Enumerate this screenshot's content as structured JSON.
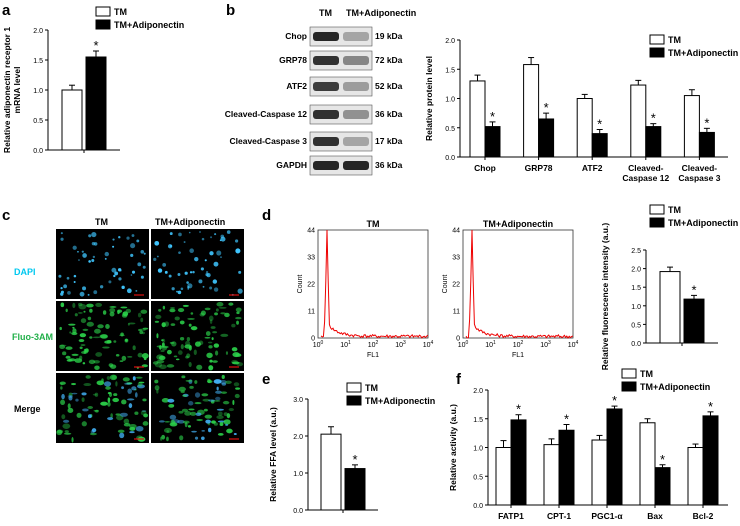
{
  "panels": {
    "a": {
      "label": "a"
    },
    "b": {
      "label": "b",
      "blot_header_left": "TM",
      "blot_header_right": "TM+Adiponectin"
    },
    "c": {
      "label": "c",
      "col_left": "TM",
      "col_right": "TM+Adiponectin",
      "rows": [
        "DAPI",
        "Fluo-3AM",
        "Merge"
      ],
      "colors": {
        "dapi": "#00c8f0",
        "fluo": "#22b04a",
        "merge": "#000000"
      }
    },
    "d": {
      "label": "d",
      "hist_left_title": "TM",
      "hist_right_title": "TM+Adiponectin",
      "hist_y_label": "Count",
      "hist_x_label": "FL1",
      "hist_y_ticks": [
        "0",
        "11",
        "22",
        "33",
        "44"
      ],
      "hist_x_exp": [
        "0",
        "1",
        "2",
        "3",
        "4"
      ],
      "hist_x_base": "10"
    },
    "e": {
      "label": "e"
    },
    "f": {
      "label": "f"
    }
  },
  "blot": {
    "rows": [
      {
        "name": "Chop",
        "kda": "19 kDa"
      },
      {
        "name": "GRP78",
        "kda": "72 kDa"
      },
      {
        "name": "ATF2",
        "kda": "52 kDa"
      },
      {
        "name": "Cleaved-Caspase 12",
        "kda": "36 kDa"
      },
      {
        "name": "Cleaved-Caspase 3",
        "kda": "17 kDa"
      },
      {
        "name": "GAPDH",
        "kda": "36 kDa"
      }
    ]
  },
  "legend": {
    "tm": "TM",
    "tm_adipo": "TM+Adiponectin"
  },
  "significance_marker": "*",
  "chart_data": [
    {
      "id": "a",
      "type": "bar",
      "ylabel": "Relative adiponectin receptor 1 mRNA level",
      "ylim": [
        0,
        2.0
      ],
      "yticks": [
        "0.0",
        "0.5",
        "1.0",
        "1.5",
        "2.0"
      ],
      "categories": [
        ""
      ],
      "series": [
        {
          "name": "TM",
          "values": [
            1.0
          ],
          "errors": [
            0.08
          ]
        },
        {
          "name": "TM+Adiponectin",
          "values": [
            1.55
          ],
          "errors": [
            0.1
          ]
        }
      ],
      "significant": [
        true
      ]
    },
    {
      "id": "b",
      "type": "bar",
      "ylabel": "Relative protein level",
      "ylim": [
        0,
        2.0
      ],
      "yticks": [
        "0.0",
        "0.5",
        "1.0",
        "1.5",
        "2.0"
      ],
      "categories": [
        "Chop",
        "GRP78",
        "ATF2",
        "Cleaved-Caspase 12",
        "Cleaved-Caspase 3"
      ],
      "category_lines": [
        [
          "Chop"
        ],
        [
          "GRP78"
        ],
        [
          "ATF2"
        ],
        [
          "Cleaved-",
          "Caspase 12"
        ],
        [
          "Cleaved-",
          "Caspase 3"
        ]
      ],
      "series": [
        {
          "name": "TM",
          "values": [
            1.3,
            1.58,
            1.0,
            1.23,
            1.05
          ],
          "errors": [
            0.1,
            0.12,
            0.07,
            0.08,
            0.1
          ]
        },
        {
          "name": "TM+Adiponectin",
          "values": [
            0.52,
            0.65,
            0.4,
            0.52,
            0.42
          ],
          "errors": [
            0.08,
            0.1,
            0.07,
            0.05,
            0.07
          ]
        }
      ],
      "significant": [
        true,
        true,
        true,
        true,
        true
      ]
    },
    {
      "id": "d",
      "type": "bar",
      "ylabel": "Relative fluorescence intensity (a.u.)",
      "ylim": [
        0,
        2.5
      ],
      "yticks": [
        "0.0",
        "0.5",
        "1.0",
        "1.5",
        "2.0",
        "2.5"
      ],
      "categories": [
        ""
      ],
      "series": [
        {
          "name": "TM",
          "values": [
            1.92
          ],
          "errors": [
            0.12
          ]
        },
        {
          "name": "TM+Adiponectin",
          "values": [
            1.18
          ],
          "errors": [
            0.1
          ]
        }
      ],
      "significant": [
        true
      ]
    },
    {
      "id": "e",
      "type": "bar",
      "ylabel": "Relative FFA level (a.u.)",
      "ylim": [
        0,
        3.0
      ],
      "yticks": [
        "0.0",
        "1.0",
        "2.0",
        "3.0"
      ],
      "categories": [
        ""
      ],
      "series": [
        {
          "name": "TM",
          "values": [
            2.05
          ],
          "errors": [
            0.2
          ]
        },
        {
          "name": "TM+Adiponectin",
          "values": [
            1.12
          ],
          "errors": [
            0.1
          ]
        }
      ],
      "significant": [
        true
      ]
    },
    {
      "id": "f",
      "type": "bar",
      "ylabel": "Relative activity (a.u.)",
      "ylim": [
        0,
        2.0
      ],
      "yticks": [
        "0.0",
        "0.5",
        "1.0",
        "1.5",
        "2.0"
      ],
      "categories": [
        "FATP1",
        "CPT-1",
        "PGC1-α",
        "Bax",
        "Bcl-2"
      ],
      "category_lines": [
        [
          "FATP1"
        ],
        [
          "CPT-1"
        ],
        [
          "PGC1-α"
        ],
        [
          "Bax"
        ],
        [
          "Bcl-2"
        ]
      ],
      "series": [
        {
          "name": "TM",
          "values": [
            1.0,
            1.05,
            1.13,
            1.43,
            1.0
          ],
          "errors": [
            0.12,
            0.1,
            0.08,
            0.07,
            0.06
          ]
        },
        {
          "name": "TM+Adiponectin",
          "values": [
            1.48,
            1.3,
            1.67,
            0.65,
            1.55
          ],
          "errors": [
            0.09,
            0.1,
            0.05,
            0.05,
            0.07
          ]
        }
      ],
      "significant": [
        true,
        true,
        true,
        true,
        true
      ]
    }
  ]
}
